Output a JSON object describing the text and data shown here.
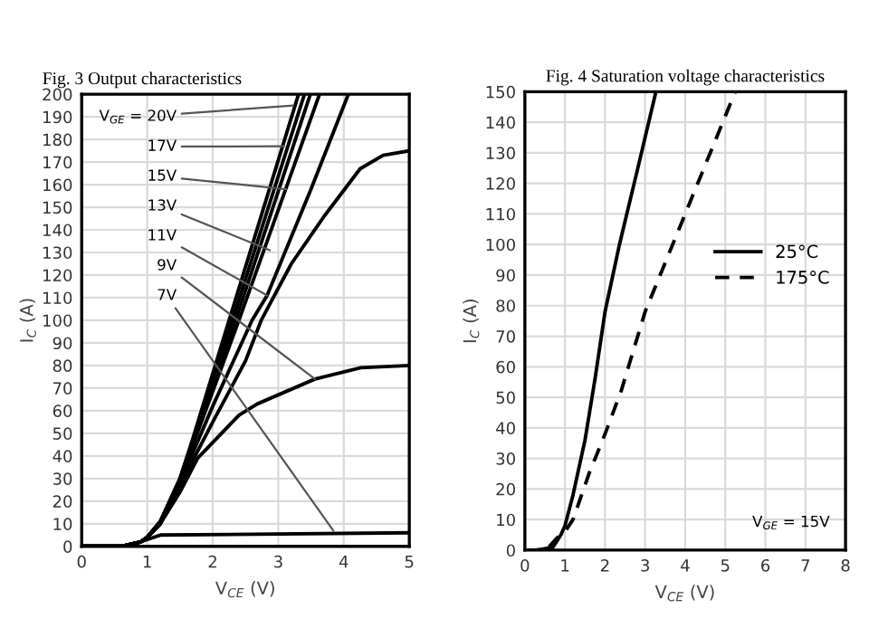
{
  "chart_data": [
    {
      "type": "line",
      "title": "Fig. 3 Output characteristics",
      "xlabel": "V$_{CE}$ (V)",
      "ylabel": "I$_{C}$ (A)",
      "xlim": [
        0,
        5
      ],
      "ylim": [
        0,
        200
      ],
      "xticks": [
        0,
        1,
        2,
        3,
        4,
        5
      ],
      "yticks": [
        0,
        10,
        20,
        30,
        40,
        50,
        60,
        70,
        80,
        90,
        100,
        110,
        120,
        130,
        140,
        150,
        160,
        170,
        180,
        190,
        200
      ],
      "grid": true,
      "marker": "none",
      "line_style": "solid",
      "legend": false,
      "series": [
        {
          "color": "#000000",
          "x": [
            0,
            0.6,
            0.9,
            1.0,
            1.2,
            1.5,
            1.7,
            2.25,
            3.31
          ],
          "values": [
            0,
            0,
            2,
            4,
            11,
            30,
            48,
            100,
            200
          ]
        },
        {
          "color": "#000000",
          "x": [
            0,
            0.6,
            0.9,
            1.0,
            1.2,
            1.5,
            1.7,
            2.3,
            3.4
          ],
          "values": [
            0,
            0,
            2,
            4,
            11,
            30,
            47,
            100,
            200
          ]
        },
        {
          "color": "#000000",
          "x": [
            0,
            0.6,
            0.9,
            1.0,
            1.2,
            1.5,
            1.7,
            2.35,
            3.49
          ],
          "values": [
            0,
            0,
            2,
            4,
            11,
            29,
            46,
            100,
            200
          ]
        },
        {
          "color": "#000000",
          "x": [
            0,
            0.6,
            0.9,
            1.0,
            1.2,
            1.5,
            1.7,
            2.4,
            3.63
          ],
          "values": [
            0,
            0,
            2,
            4,
            11,
            29,
            45,
            100,
            200
          ]
        },
        {
          "color": "#000000",
          "x": [
            0,
            0.6,
            0.9,
            1.0,
            1.2,
            1.5,
            2.0,
            2.6,
            2.83,
            3.5,
            4.07
          ],
          "values": [
            0,
            0,
            2,
            4,
            10,
            28,
            62,
            100,
            111,
            158,
            200
          ]
        },
        {
          "color": "#000000",
          "x": [
            0,
            0.6,
            0.9,
            1.0,
            1.2,
            1.5,
            2.0,
            2.5,
            2.74,
            3.2,
            3.7,
            4.25,
            4.6,
            5.0
          ],
          "values": [
            0,
            0,
            2,
            4,
            10,
            27,
            55,
            82,
            100,
            125,
            146,
            167,
            173,
            175
          ]
        },
        {
          "color": "#000000",
          "x": [
            0,
            0.6,
            0.9,
            1.0,
            1.2,
            1.5,
            1.77,
            2.4,
            2.68,
            3.56,
            4.26,
            5.0
          ],
          "values": [
            0,
            0,
            2,
            4,
            10,
            24,
            39,
            58,
            63,
            74,
            79,
            80
          ]
        },
        {
          "color": "#000000",
          "x": [
            0,
            0.6,
            0.9,
            1.0,
            1.2,
            5.0
          ],
          "values": [
            0,
            0,
            2,
            3,
            5,
            6
          ]
        }
      ],
      "annotations": [
        {
          "text": "V$_{GE}$ = 20V",
          "x": 3.23,
          "y": 195
        },
        {
          "text": "17V",
          "x": 3.09,
          "y": 177
        },
        {
          "text": "15V",
          "x": 3.12,
          "y": 158
        },
        {
          "text": "13V",
          "x": 2.87,
          "y": 131
        },
        {
          "text": "11V",
          "x": 2.83,
          "y": 111
        },
        {
          "text": "9V",
          "x": 3.56,
          "y": 74
        },
        {
          "text": "7V",
          "x": 3.84,
          "y": 7
        }
      ]
    },
    {
      "type": "line",
      "title": "Fig. 4 Saturation voltage characteristics",
      "xlabel": "V$_{CE}$ (V)",
      "ylabel": "I$_{C}$ (A)",
      "xlim": [
        0,
        8
      ],
      "ylim": [
        0,
        150
      ],
      "xticks": [
        0,
        1,
        2,
        3,
        4,
        5,
        6,
        7,
        8
      ],
      "yticks": [
        0,
        10,
        20,
        30,
        40,
        50,
        60,
        70,
        80,
        90,
        100,
        110,
        120,
        130,
        140,
        150
      ],
      "grid": true,
      "marker": "none",
      "legend": "right",
      "series": [
        {
          "name": "25°C",
          "color": "#000000",
          "line_style": "solid",
          "x": [
            0,
            0.3,
            0.7,
            0.9,
            1.0,
            1.2,
            1.5,
            1.75,
            2.0,
            2.36,
            2.8,
            3.27
          ],
          "values": [
            0,
            0,
            1,
            5,
            8,
            18,
            36,
            56,
            78,
            100,
            124,
            150
          ]
        },
        {
          "name": "175°C",
          "color": "#000000",
          "line_style": "dashed",
          "x": [
            0,
            0.3,
            0.6,
            0.8,
            1.0,
            1.2,
            1.6,
            2.0,
            2.4,
            3.0,
            4.0,
            5.25
          ],
          "values": [
            0,
            0,
            1,
            4,
            6,
            10,
            25,
            38,
            52,
            78,
            110,
            150
          ]
        }
      ],
      "annotations": [
        "V$_{GE}$ = 15V"
      ]
    }
  ]
}
